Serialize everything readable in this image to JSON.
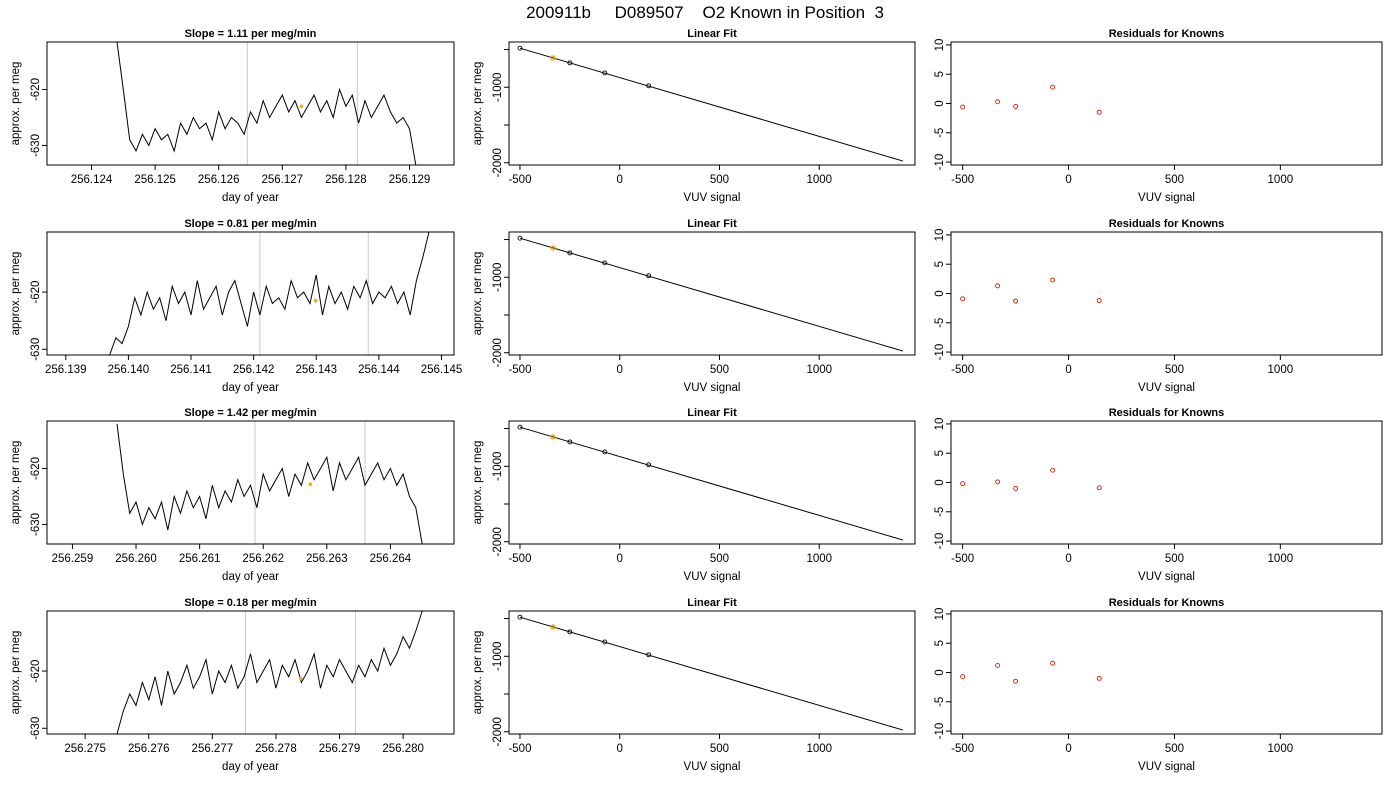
{
  "figure": {
    "title": "200911b     D089507    O2 Known in Position  3"
  },
  "chart_data": [
    {
      "type": "line",
      "panel": "timeseries",
      "row": 0,
      "title": "Slope =  1.11  per meg/min",
      "xlabel": "day of year",
      "ylabel": "approx. per meg",
      "xlim": [
        256.1233,
        256.1297
      ],
      "ylim": [
        -633.5,
        -611.5
      ],
      "xticks": [
        256.124,
        256.125,
        256.126,
        256.127,
        256.128,
        256.129
      ],
      "xtick_labels": [
        "256.124",
        "256.125",
        "256.126",
        "256.127",
        "256.128",
        "256.129"
      ],
      "yticks": [
        -630,
        -620
      ],
      "ytick_labels": [
        "-630",
        "-620"
      ],
      "vlines": [
        256.12645,
        256.12818
      ],
      "marker": {
        "x": 256.1273,
        "y": -623.0,
        "color": "#ffa500"
      },
      "series": [
        {
          "color": "#000000",
          "x": [
            256.1244,
            256.1245,
            256.1246,
            256.1247,
            256.1248,
            256.1249,
            256.125,
            256.1251,
            256.1252,
            256.1253,
            256.1254,
            256.1255,
            256.1256,
            256.1257,
            256.1258,
            256.1259,
            256.126,
            256.1261,
            256.1262,
            256.1263,
            256.1264,
            256.1265,
            256.1266,
            256.1267,
            256.1268,
            256.1269,
            256.127,
            256.1271,
            256.1272,
            256.1273,
            256.1274,
            256.1275,
            256.1276,
            256.1277,
            256.1278,
            256.1279,
            256.128,
            256.1281,
            256.1282,
            256.1283,
            256.1284,
            256.1285,
            256.1286,
            256.1287,
            256.1288,
            256.1289,
            256.129,
            256.1291
          ],
          "y": [
            -611.5,
            -620,
            -629,
            -631,
            -628,
            -630,
            -627,
            -629,
            -628,
            -631,
            -626,
            -628,
            -625,
            -627,
            -626,
            -629,
            -624,
            -627,
            -625,
            -626,
            -628,
            -624,
            -626,
            -622,
            -625,
            -623,
            -621,
            -624,
            -622,
            -625,
            -623,
            -621,
            -624,
            -622,
            -625,
            -620,
            -623,
            -621,
            -626,
            -622,
            -625,
            -623,
            -621,
            -624,
            -626,
            -625,
            -627,
            -633.5
          ]
        }
      ]
    },
    {
      "type": "line",
      "panel": "linear_fit",
      "row": 0,
      "title": "Linear Fit",
      "xlabel": "VUV signal",
      "ylabel": "approx. per meg",
      "xlim": [
        -555,
        1480
      ],
      "ylim": [
        -2030,
        -400
      ],
      "xticks": [
        -500,
        0,
        500,
        1000
      ],
      "xtick_labels": [
        "-500",
        "0",
        "500",
        "1000"
      ],
      "yticks": [
        -2000,
        -1500,
        -1000,
        -500
      ],
      "ytick_labels": [
        "-2000",
        "",
        "-1000",
        ""
      ],
      "fit_line": {
        "x": [
          -500,
          1420
        ],
        "y": [
          -482,
          -1978
        ]
      },
      "points": {
        "x": [
          -500,
          -335,
          -250,
          -75,
          145
        ],
        "y": [
          -482,
          -612,
          -677,
          -810,
          -980
        ]
      },
      "highlight": {
        "x": -335,
        "y": -612,
        "color": "#ffa500"
      }
    },
    {
      "type": "scatter",
      "panel": "residuals",
      "row": 0,
      "title": "Residuals for Knowns",
      "xlabel": "VUV signal",
      "ylabel": "",
      "xlim": [
        -555,
        1480
      ],
      "ylim": [
        -10.5,
        10.5
      ],
      "xticks": [
        -500,
        0,
        500,
        1000
      ],
      "xtick_labels": [
        "-500",
        "0",
        "500",
        "1000"
      ],
      "yticks": [
        -10,
        -5,
        0,
        5,
        10
      ],
      "ytick_labels": [
        "-10",
        "-5",
        "0",
        "5",
        "10"
      ],
      "points": {
        "x": [
          -500,
          -335,
          -250,
          -75,
          145
        ],
        "y": [
          -0.6,
          0.3,
          -0.5,
          2.8,
          -1.5
        ],
        "color": "#cc2200"
      }
    },
    {
      "type": "line",
      "panel": "timeseries",
      "row": 1,
      "title": "Slope =  0.81  per meg/min",
      "xlabel": "day of year",
      "ylabel": "approx. per meg",
      "xlim": [
        256.1387,
        256.1452
      ],
      "ylim": [
        -631,
        -609.5
      ],
      "xticks": [
        256.139,
        256.14,
        256.141,
        256.142,
        256.143,
        256.144,
        256.145
      ],
      "xtick_labels": [
        "256.139",
        "256.140",
        "256.141",
        "256.142",
        "256.143",
        "256.144",
        "256.145"
      ],
      "yticks": [
        -630,
        -620
      ],
      "ytick_labels": [
        "-630",
        "-620"
      ],
      "vlines": [
        256.1421,
        256.14383
      ],
      "marker": {
        "x": 256.14299,
        "y": -621.5,
        "color": "#ffa500"
      },
      "series": [
        {
          "color": "#000000",
          "x": [
            256.1397,
            256.1398,
            256.1399,
            256.14,
            256.1401,
            256.1402,
            256.1403,
            256.1404,
            256.1405,
            256.1406,
            256.1407,
            256.1408,
            256.1409,
            256.141,
            256.1411,
            256.1412,
            256.1413,
            256.1414,
            256.1415,
            256.1416,
            256.1417,
            256.1418,
            256.1419,
            256.142,
            256.1421,
            256.1422,
            256.1423,
            256.1424,
            256.1425,
            256.1426,
            256.1427,
            256.1428,
            256.1429,
            256.143,
            256.1431,
            256.1432,
            256.1433,
            256.1434,
            256.1435,
            256.1436,
            256.1437,
            256.1438,
            256.1439,
            256.144,
            256.1441,
            256.1442,
            256.1443,
            256.1444,
            256.1445,
            256.1446,
            256.1447,
            256.1448
          ],
          "y": [
            -631,
            -628,
            -629,
            -626,
            -621,
            -624,
            -620,
            -623,
            -621,
            -625,
            -619,
            -622,
            -620,
            -624,
            -618,
            -623,
            -621,
            -619,
            -624,
            -620,
            -618,
            -622,
            -626,
            -620,
            -624,
            -619,
            -622,
            -621,
            -623,
            -618,
            -621,
            -620,
            -622,
            -617,
            -624,
            -619,
            -622,
            -620,
            -623,
            -619,
            -621,
            -618,
            -622,
            -620,
            -621,
            -619,
            -622,
            -620,
            -624,
            -618,
            -614,
            -609.5
          ]
        }
      ]
    },
    {
      "type": "line",
      "panel": "linear_fit",
      "row": 1,
      "title": "Linear Fit",
      "xlabel": "VUV signal",
      "ylabel": "approx. per meg",
      "xlim": [
        -555,
        1480
      ],
      "ylim": [
        -2030,
        -400
      ],
      "xticks": [
        -500,
        0,
        500,
        1000
      ],
      "xtick_labels": [
        "-500",
        "0",
        "500",
        "1000"
      ],
      "yticks": [
        -2000,
        -1500,
        -1000,
        -500
      ],
      "ytick_labels": [
        "-2000",
        "",
        "-1000",
        ""
      ],
      "fit_line": {
        "x": [
          -500,
          1420
        ],
        "y": [
          -482,
          -1978
        ]
      },
      "points": {
        "x": [
          -500,
          -335,
          -250,
          -75,
          145
        ],
        "y": [
          -482,
          -612,
          -677,
          -810,
          -980
        ]
      },
      "highlight": {
        "x": -335,
        "y": -612,
        "color": "#ffa500"
      }
    },
    {
      "type": "scatter",
      "panel": "residuals",
      "row": 1,
      "title": "Residuals for Knowns",
      "xlabel": "VUV signal",
      "ylabel": "",
      "xlim": [
        -555,
        1480
      ],
      "ylim": [
        -10.5,
        10.5
      ],
      "xticks": [
        -500,
        0,
        500,
        1000
      ],
      "xtick_labels": [
        "-500",
        "0",
        "500",
        "1000"
      ],
      "yticks": [
        -10,
        -5,
        0,
        5,
        10
      ],
      "ytick_labels": [
        "-10",
        "-5",
        "0",
        "5",
        "10"
      ],
      "points": {
        "x": [
          -500,
          -335,
          -250,
          -75,
          145
        ],
        "y": [
          -0.9,
          1.3,
          -1.3,
          2.3,
          -1.2
        ],
        "color": "#cc2200"
      }
    },
    {
      "type": "line",
      "panel": "timeseries",
      "row": 2,
      "title": "Slope =  1.42  per meg/min",
      "xlabel": "day of year",
      "ylabel": "approx. per meg",
      "xlim": [
        256.2586,
        256.265
      ],
      "ylim": [
        -633.5,
        -611.5
      ],
      "xticks": [
        256.259,
        256.26,
        256.261,
        256.262,
        256.263,
        256.264
      ],
      "xtick_labels": [
        "256.259",
        "256.260",
        "256.261",
        "256.262",
        "256.263",
        "256.264"
      ],
      "yticks": [
        -630,
        -620
      ],
      "ytick_labels": [
        "-630",
        "-620"
      ],
      "vlines": [
        256.26187,
        256.2636
      ],
      "marker": {
        "x": 256.26274,
        "y": -622.8,
        "color": "#ffa500"
      },
      "series": [
        {
          "color": "#000000",
          "x": [
            256.2597,
            256.2598,
            256.2599,
            256.26,
            256.2601,
            256.2602,
            256.2603,
            256.2604,
            256.2605,
            256.2606,
            256.2607,
            256.2608,
            256.2609,
            256.261,
            256.2611,
            256.2612,
            256.2613,
            256.2614,
            256.2615,
            256.2616,
            256.2617,
            256.2618,
            256.2619,
            256.262,
            256.2621,
            256.2622,
            256.2623,
            256.2624,
            256.2625,
            256.2626,
            256.2627,
            256.2628,
            256.2629,
            256.263,
            256.2631,
            256.2632,
            256.2633,
            256.2634,
            256.2635,
            256.2636,
            256.2637,
            256.2638,
            256.2639,
            256.264,
            256.2641,
            256.2642,
            256.2643,
            256.2644,
            256.2645
          ],
          "y": [
            -612,
            -621,
            -628,
            -626,
            -630,
            -627,
            -629,
            -626,
            -631,
            -625,
            -628,
            -624,
            -627,
            -625,
            -629,
            -623,
            -627,
            -624,
            -626,
            -622,
            -625,
            -623,
            -627,
            -621,
            -624,
            -622,
            -620,
            -625,
            -621,
            -623,
            -619,
            -622,
            -620,
            -618,
            -624,
            -619,
            -622,
            -620,
            -618,
            -623,
            -621,
            -619,
            -622,
            -620,
            -623,
            -621,
            -625,
            -627,
            -633.5
          ]
        }
      ]
    },
    {
      "type": "line",
      "panel": "linear_fit",
      "row": 2,
      "title": "Linear Fit",
      "xlabel": "VUV signal",
      "ylabel": "approx. per meg",
      "xlim": [
        -555,
        1480
      ],
      "ylim": [
        -2030,
        -400
      ],
      "xticks": [
        -500,
        0,
        500,
        1000
      ],
      "xtick_labels": [
        "-500",
        "0",
        "500",
        "1000"
      ],
      "yticks": [
        -2000,
        -1500,
        -1000,
        -500
      ],
      "ytick_labels": [
        "-2000",
        "",
        "-1000",
        ""
      ],
      "fit_line": {
        "x": [
          -500,
          1420
        ],
        "y": [
          -482,
          -1978
        ]
      },
      "points": {
        "x": [
          -500,
          -335,
          -250,
          -75,
          145
        ],
        "y": [
          -482,
          -612,
          -677,
          -810,
          -980
        ]
      },
      "highlight": {
        "x": -335,
        "y": -612,
        "color": "#ffa500"
      }
    },
    {
      "type": "scatter",
      "panel": "residuals",
      "row": 2,
      "title": "Residuals for Knowns",
      "xlabel": "VUV signal",
      "ylabel": "",
      "xlim": [
        -555,
        1480
      ],
      "ylim": [
        -10.5,
        10.5
      ],
      "xticks": [
        -500,
        0,
        500,
        1000
      ],
      "xtick_labels": [
        "-500",
        "0",
        "500",
        "1000"
      ],
      "yticks": [
        -10,
        -5,
        0,
        5,
        10
      ],
      "ytick_labels": [
        "-10",
        "-5",
        "0",
        "5",
        "10"
      ],
      "points": {
        "x": [
          -500,
          -335,
          -250,
          -75,
          145
        ],
        "y": [
          -0.2,
          0.1,
          -1.0,
          2.1,
          -0.9
        ],
        "color": "#cc2200"
      }
    },
    {
      "type": "line",
      "panel": "timeseries",
      "row": 3,
      "title": "Slope =  0.18  per meg/min",
      "xlabel": "day of year",
      "ylabel": "approx. per meg",
      "xlim": [
        256.2744,
        256.2808
      ],
      "ylim": [
        -631,
        -609.5
      ],
      "xticks": [
        256.275,
        256.276,
        256.277,
        256.278,
        256.279,
        256.28
      ],
      "xtick_labels": [
        "256.275",
        "256.276",
        "256.277",
        "256.278",
        "256.279",
        "256.280"
      ],
      "yticks": [
        -630,
        -620
      ],
      "ytick_labels": [
        "-630",
        "-620"
      ],
      "vlines": [
        256.27752,
        256.27925
      ],
      "marker": {
        "x": 256.27839,
        "y": -621.3,
        "color": "#ffa500"
      },
      "series": [
        {
          "color": "#000000",
          "x": [
            256.2755,
            256.2756,
            256.2757,
            256.2758,
            256.2759,
            256.276,
            256.2761,
            256.2762,
            256.2763,
            256.2764,
            256.2765,
            256.2766,
            256.2767,
            256.2768,
            256.2769,
            256.277,
            256.2771,
            256.2772,
            256.2773,
            256.2774,
            256.2775,
            256.2776,
            256.2777,
            256.2778,
            256.2779,
            256.278,
            256.2781,
            256.2782,
            256.2783,
            256.2784,
            256.2785,
            256.2786,
            256.2787,
            256.2788,
            256.2789,
            256.279,
            256.2791,
            256.2792,
            256.2793,
            256.2794,
            256.2795,
            256.2796,
            256.2797,
            256.2798,
            256.2799,
            256.28,
            256.2801,
            256.2802,
            256.2803
          ],
          "y": [
            -631,
            -627,
            -624,
            -626,
            -622,
            -625,
            -621,
            -626,
            -620,
            -624,
            -622,
            -619,
            -623,
            -621,
            -618,
            -624,
            -620,
            -622,
            -619,
            -623,
            -621,
            -617,
            -622,
            -620,
            -618,
            -623,
            -619,
            -621,
            -618,
            -622,
            -620,
            -617,
            -623,
            -619,
            -621,
            -618,
            -620,
            -622,
            -619,
            -621,
            -618,
            -620,
            -616,
            -619,
            -617,
            -614,
            -616,
            -613,
            -609.5
          ]
        }
      ]
    },
    {
      "type": "line",
      "panel": "linear_fit",
      "row": 3,
      "title": "Linear Fit",
      "xlabel": "VUV signal",
      "ylabel": "approx. per meg",
      "xlim": [
        -555,
        1480
      ],
      "ylim": [
        -2030,
        -400
      ],
      "xticks": [
        -500,
        0,
        500,
        1000
      ],
      "xtick_labels": [
        "-500",
        "0",
        "500",
        "1000"
      ],
      "yticks": [
        -2000,
        -1500,
        -1000,
        -500
      ],
      "ytick_labels": [
        "-2000",
        "",
        "-1000",
        ""
      ],
      "fit_line": {
        "x": [
          -500,
          1420
        ],
        "y": [
          -482,
          -1978
        ]
      },
      "points": {
        "x": [
          -500,
          -335,
          -250,
          -75,
          145
        ],
        "y": [
          -482,
          -612,
          -677,
          -810,
          -980
        ]
      },
      "highlight": {
        "x": -335,
        "y": -612,
        "color": "#ffa500"
      }
    },
    {
      "type": "scatter",
      "panel": "residuals",
      "row": 3,
      "title": "Residuals for Knowns",
      "xlabel": "VUV signal",
      "ylabel": "",
      "xlim": [
        -555,
        1480
      ],
      "ylim": [
        -10.5,
        10.5
      ],
      "xticks": [
        -500,
        0,
        500,
        1000
      ],
      "xtick_labels": [
        "-500",
        "0",
        "500",
        "1000"
      ],
      "yticks": [
        -10,
        -5,
        0,
        5,
        10
      ],
      "ytick_labels": [
        "-10",
        "-5",
        "0",
        "5",
        "10"
      ],
      "points": {
        "x": [
          -500,
          -335,
          -250,
          -75,
          145
        ],
        "y": [
          -0.7,
          1.2,
          -1.5,
          1.6,
          -1.0
        ],
        "color": "#cc2200"
      }
    }
  ]
}
